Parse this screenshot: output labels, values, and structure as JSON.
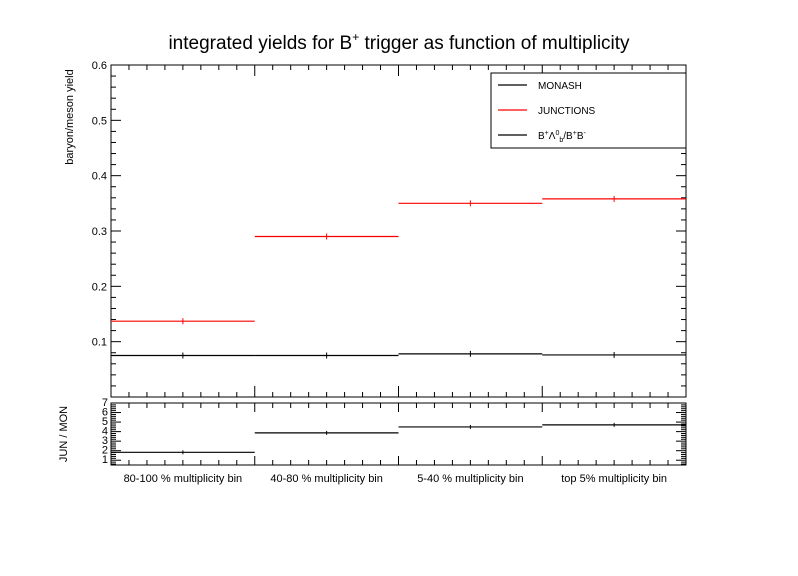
{
  "chart_data": [
    {
      "type": "line",
      "title": "integrated yields for B",
      "title_sup": "+",
      "title_rest": " trigger as function of multiplicity",
      "ylabel": "baryon/meson yield",
      "ylim": [
        0.0,
        0.6
      ],
      "yticks": [
        0.1,
        0.2,
        0.3,
        0.4,
        0.5,
        0.6
      ],
      "ytick_labels": [
        "0.1",
        "0.2",
        "0.3",
        "0.4",
        "0.5",
        "0.6"
      ],
      "categories": [
        "80-100 % multiplicity bin",
        "40-80 % multiplicity bin",
        "5-40 % multiplicity bin",
        "top 5% multiplicity bin"
      ],
      "series": [
        {
          "name": "MONASH",
          "color": "#000000",
          "values": [
            0.075,
            0.075,
            0.078,
            0.076
          ]
        },
        {
          "name": "JUNCTIONS",
          "color": "#ff0000",
          "values": [
            0.137,
            0.29,
            0.35,
            0.358
          ]
        }
      ],
      "legend": {
        "position": "top-right",
        "entries": [
          {
            "label": "MONASH",
            "color": "#000000"
          },
          {
            "label": "JUNCTIONS",
            "color": "#ff0000"
          },
          {
            "label": "B",
            "sup1": "+",
            "mid": "Λ",
            "sup2": "0",
            "sub2": "b",
            "rest": "/B",
            "sup3": "+",
            "end": "B",
            "sup4": "-",
            "color": "#000000"
          }
        ]
      }
    },
    {
      "type": "line",
      "ylabel": "JUN / MON",
      "ylim": [
        0.5,
        7.0
      ],
      "yticks": [
        1,
        2,
        3,
        4,
        5,
        6,
        7
      ],
      "ytick_labels": [
        "1",
        "2",
        "3",
        "4",
        "5",
        "6",
        "7"
      ],
      "series": [
        {
          "name": "",
          "color": "#000000",
          "values": [
            1.83,
            3.87,
            4.49,
            4.71
          ]
        }
      ]
    }
  ]
}
